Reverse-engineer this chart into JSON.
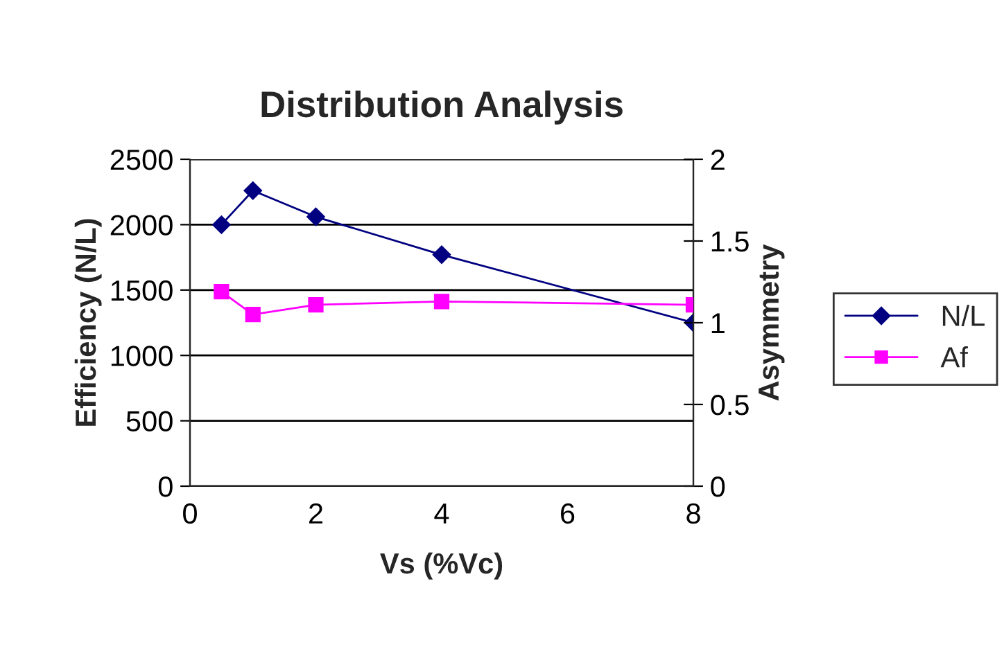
{
  "chart_data": {
    "type": "line",
    "title": "Distribution Analysis",
    "xlabel": "Vs (%Vc)",
    "ylabel": "Efficiency (N/L)",
    "y2label": "Asymmetry",
    "x": [
      0.5,
      1,
      2,
      4,
      8
    ],
    "series": [
      {
        "name": "N/L",
        "color": "#000080",
        "values": [
          2000,
          2260,
          2060,
          1770,
          1250
        ],
        "marker": "diamond"
      },
      {
        "name": "Af",
        "color": "#ff00ff",
        "values": [
          1.19,
          1.05,
          1.11,
          1.13,
          1.11
        ],
        "marker": "square",
        "axis": "y2"
      }
    ],
    "xlim": [
      0,
      8
    ],
    "xticks": [
      0,
      2,
      4,
      6,
      8
    ],
    "ylim": [
      0,
      2500
    ],
    "yticks": [
      0,
      500,
      1000,
      1500,
      2000,
      2500
    ],
    "y2lim": [
      0,
      2
    ],
    "y2ticks": [
      0,
      0.5,
      1,
      1.5,
      2
    ],
    "grid": "y",
    "legend": "right",
    "line_style": "solid"
  }
}
